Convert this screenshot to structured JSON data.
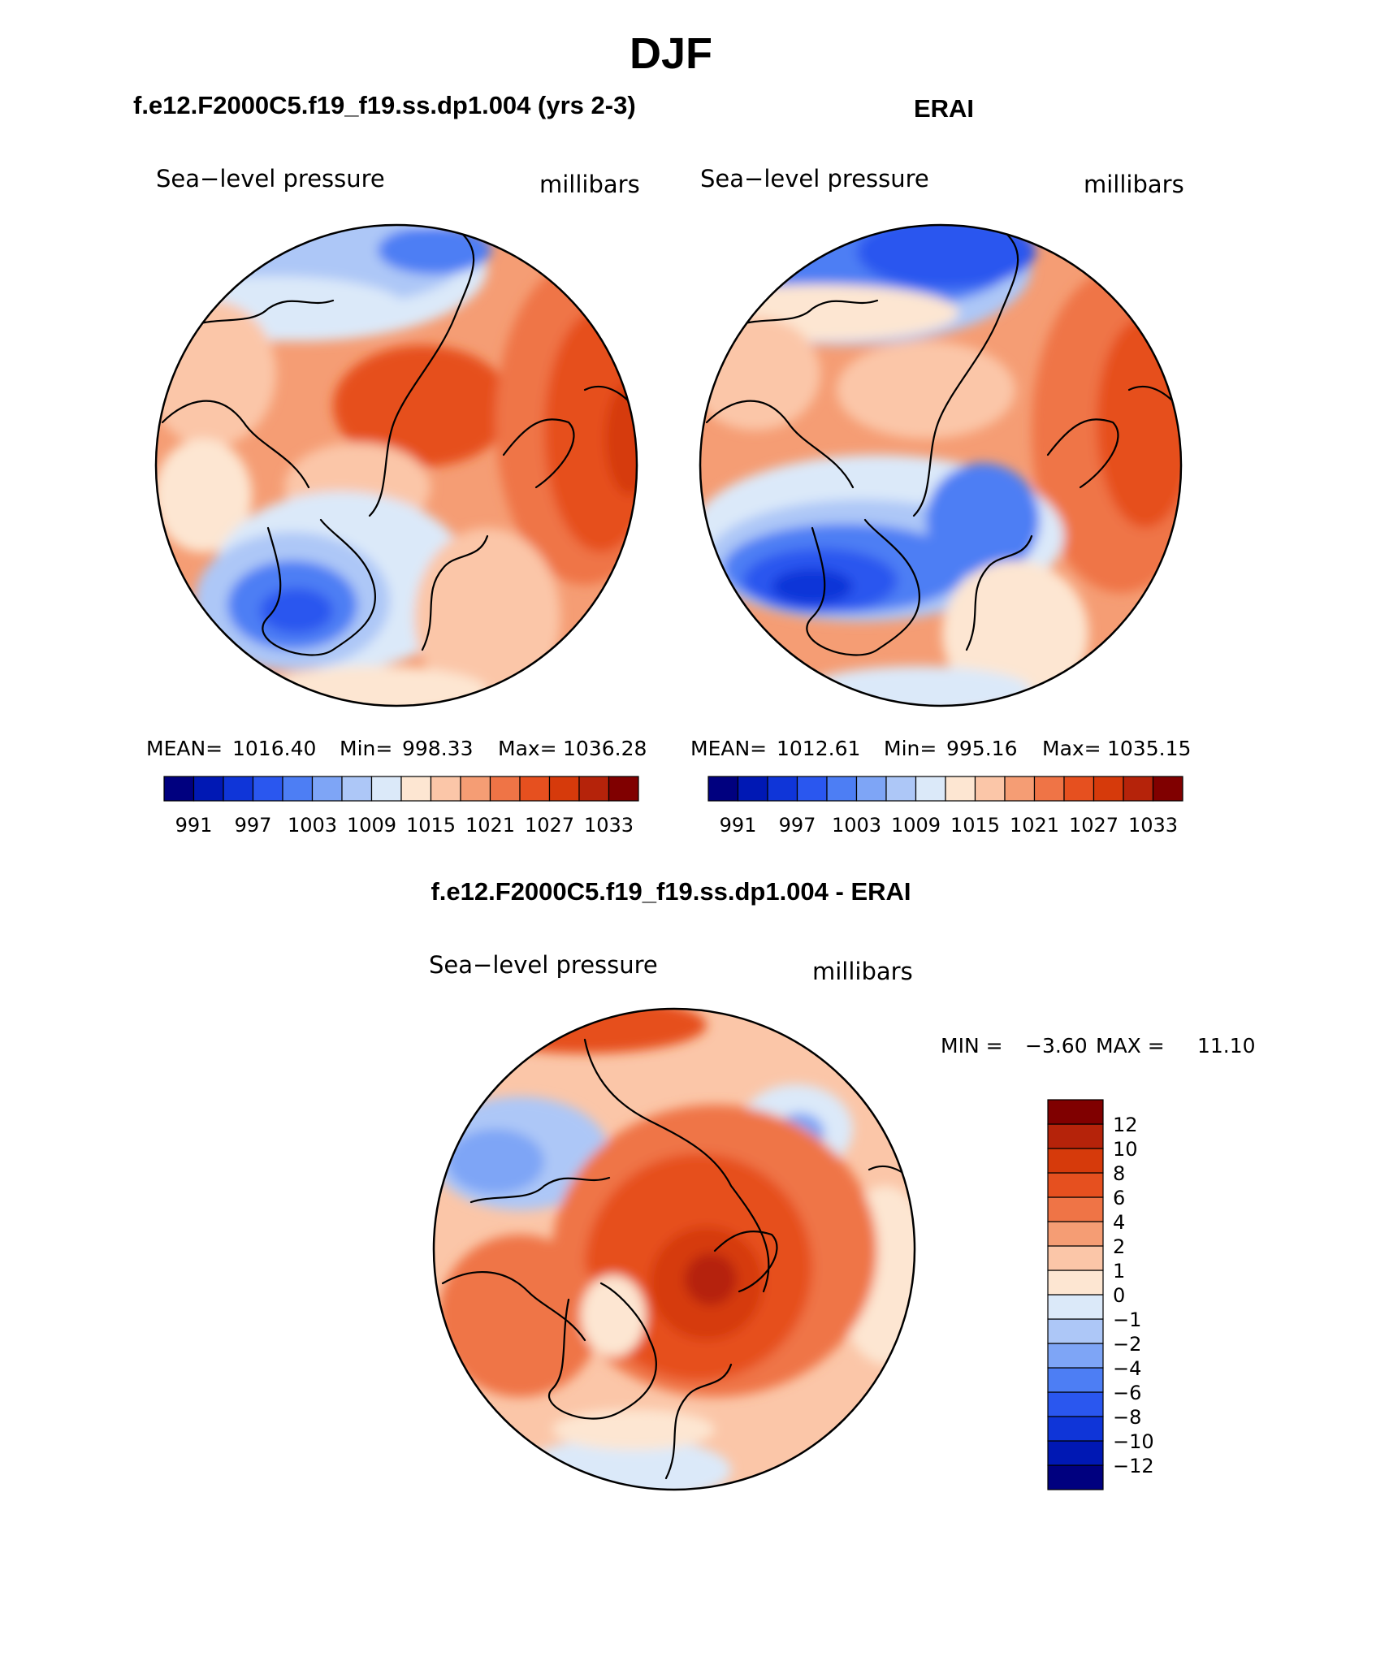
{
  "figure": {
    "title": "DJF"
  },
  "colors": {
    "slp_palette": [
      "#00007f",
      "#0018b4",
      "#0f35d8",
      "#2a57ef",
      "#4d7ef4",
      "#7ea5f6",
      "#adc7f7",
      "#dbe9f9",
      "#fde6d2",
      "#fbc6a8",
      "#f59d74",
      "#ef7446",
      "#e6501f",
      "#d63a0b",
      "#b5230a",
      "#800000"
    ],
    "diff_palette": [
      "#00007f",
      "#0018b4",
      "#0f35d8",
      "#2a57ef",
      "#4d7ef4",
      "#7ea5f6",
      "#adc7f7",
      "#dbe9f9",
      "#fde6d2",
      "#fbc6a8",
      "#f59d74",
      "#ef7446",
      "#e6501f",
      "#d63a0b",
      "#b5230a",
      "#800000"
    ],
    "coastline": "#000000"
  },
  "chart_data": [
    {
      "type": "heatmap",
      "projection": "north polar stereographic",
      "title": "f.e12.F2000C5.f19_f19.ss.dp1.004 (yrs 2-3)",
      "left_label": "Sea−level pressure",
      "right_label": "millibars",
      "stats": {
        "mean_label": "MEAN=",
        "mean": "1016.40",
        "min_label": "Min=",
        "min": "998.33",
        "max_label": "Max=",
        "max": "1036.28"
      },
      "colorbar": {
        "orientation": "horizontal",
        "levels": [
          991,
          994,
          997,
          1000,
          1003,
          1006,
          1009,
          1012,
          1015,
          1018,
          1021,
          1024,
          1027,
          1030,
          1033
        ],
        "tick_labels": [
          "991",
          "997",
          "1003",
          "1009",
          "1015",
          "1021",
          "1027",
          "1033"
        ]
      }
    },
    {
      "type": "heatmap",
      "projection": "north polar stereographic",
      "title": "ERAI",
      "left_label": "Sea−level pressure",
      "right_label": "millibars",
      "stats": {
        "mean_label": "MEAN=",
        "mean": "1012.61",
        "min_label": "Min=",
        "min": "995.16",
        "max_label": "Max=",
        "max": "1035.15"
      },
      "colorbar": {
        "orientation": "horizontal",
        "levels": [
          991,
          994,
          997,
          1000,
          1003,
          1006,
          1009,
          1012,
          1015,
          1018,
          1021,
          1024,
          1027,
          1030,
          1033
        ],
        "tick_labels": [
          "991",
          "997",
          "1003",
          "1009",
          "1015",
          "1021",
          "1027",
          "1033"
        ]
      }
    },
    {
      "type": "heatmap",
      "projection": "north polar stereographic",
      "title": "f.e12.F2000C5.f19_f19.ss.dp1.004 - ERAI",
      "left_label": "Sea−level pressure",
      "right_label": "millibars",
      "stats": {
        "min_label": "MIN =",
        "min": "−3.60",
        "max_label": "MAX =",
        "max": "11.10"
      },
      "colorbar": {
        "orientation": "vertical",
        "levels": [
          -12,
          -10,
          -8,
          -6,
          -4,
          -2,
          -1,
          0,
          1,
          2,
          4,
          6,
          8,
          10,
          12
        ],
        "tick_labels": [
          "−12",
          "−10",
          "−8",
          "−6",
          "−4",
          "−2",
          "−1",
          "0",
          "1",
          "2",
          "4",
          "6",
          "8",
          "10",
          "12"
        ]
      }
    }
  ]
}
